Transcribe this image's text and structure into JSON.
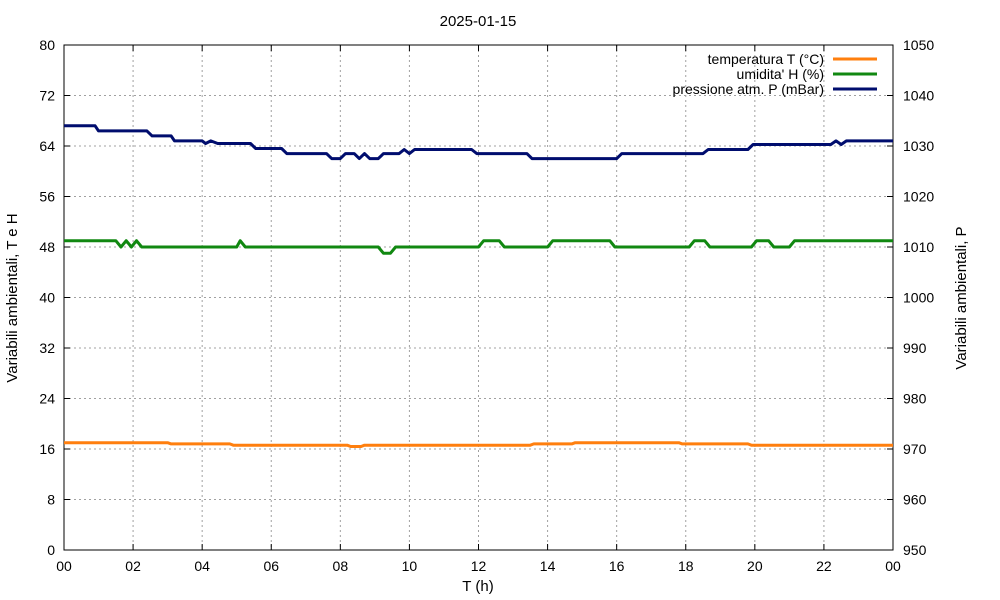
{
  "chart_data": {
    "type": "line",
    "title": "2025-01-15",
    "xlabel": "T (h)",
    "ylabel_left": "Variabili ambientali, T e H",
    "ylabel_right": "Variabili ambientali, P",
    "x_ticks": [
      "00",
      "02",
      "04",
      "06",
      "08",
      "10",
      "12",
      "14",
      "16",
      "18",
      "20",
      "22",
      "00"
    ],
    "xlim": [
      0,
      24
    ],
    "ylim_left": [
      0,
      80
    ],
    "y_ticks_left": [
      "0",
      "8",
      "16",
      "24",
      "32",
      "40",
      "48",
      "56",
      "64",
      "72",
      "80"
    ],
    "ylim_right": [
      950,
      1050
    ],
    "y_ticks_right": [
      "950",
      "960",
      "970",
      "980",
      "990",
      "1000",
      "1010",
      "1020",
      "1030",
      "1040",
      "1050"
    ],
    "grid": true,
    "legend_position": "top-right",
    "series": [
      {
        "name": "temperatura T (°C)",
        "axis": "left",
        "color": "#ff7f0e",
        "points": [
          [
            0,
            17.0
          ],
          [
            3.0,
            17.0
          ],
          [
            3.1,
            16.8
          ],
          [
            4.8,
            16.8
          ],
          [
            4.9,
            16.6
          ],
          [
            8.2,
            16.6
          ],
          [
            8.3,
            16.4
          ],
          [
            8.6,
            16.4
          ],
          [
            8.7,
            16.6
          ],
          [
            13.5,
            16.6
          ],
          [
            13.6,
            16.8
          ],
          [
            14.7,
            16.8
          ],
          [
            14.8,
            17.0
          ],
          [
            17.8,
            17.0
          ],
          [
            17.9,
            16.8
          ],
          [
            19.8,
            16.8
          ],
          [
            19.9,
            16.6
          ],
          [
            24.0,
            16.6
          ]
        ]
      },
      {
        "name": "umidita' H (%)",
        "axis": "left",
        "color": "#118811",
        "points": [
          [
            0,
            49
          ],
          [
            1.5,
            49
          ],
          [
            1.65,
            48
          ],
          [
            1.8,
            49
          ],
          [
            1.95,
            48
          ],
          [
            2.1,
            49
          ],
          [
            2.25,
            48
          ],
          [
            5.0,
            48
          ],
          [
            5.1,
            49
          ],
          [
            5.25,
            48
          ],
          [
            9.1,
            48
          ],
          [
            9.25,
            47
          ],
          [
            9.45,
            47
          ],
          [
            9.6,
            48
          ],
          [
            12.0,
            48
          ],
          [
            12.15,
            49
          ],
          [
            12.6,
            49
          ],
          [
            12.75,
            48
          ],
          [
            14.0,
            48
          ],
          [
            14.15,
            49
          ],
          [
            15.8,
            49
          ],
          [
            15.95,
            48
          ],
          [
            18.1,
            48
          ],
          [
            18.25,
            49
          ],
          [
            18.55,
            49
          ],
          [
            18.7,
            48
          ],
          [
            19.9,
            48
          ],
          [
            20.05,
            49
          ],
          [
            20.4,
            49
          ],
          [
            20.55,
            48
          ],
          [
            21.0,
            48
          ],
          [
            21.15,
            49
          ],
          [
            24.0,
            49
          ]
        ]
      },
      {
        "name": "pressione atm. P (mBar)",
        "axis": "right",
        "color": "#000d6e",
        "points": [
          [
            0,
            1034
          ],
          [
            0.9,
            1034
          ],
          [
            1.0,
            1033
          ],
          [
            2.4,
            1033
          ],
          [
            2.55,
            1032
          ],
          [
            3.1,
            1032
          ],
          [
            3.2,
            1031
          ],
          [
            4.0,
            1031
          ],
          [
            4.1,
            1030.5
          ],
          [
            4.25,
            1031
          ],
          [
            4.45,
            1030.5
          ],
          [
            5.4,
            1030.5
          ],
          [
            5.55,
            1029.5
          ],
          [
            6.3,
            1029.5
          ],
          [
            6.45,
            1028.5
          ],
          [
            7.6,
            1028.5
          ],
          [
            7.75,
            1027.5
          ],
          [
            8.0,
            1027.5
          ],
          [
            8.15,
            1028.5
          ],
          [
            8.4,
            1028.5
          ],
          [
            8.55,
            1027.5
          ],
          [
            8.7,
            1028.5
          ],
          [
            8.85,
            1027.5
          ],
          [
            9.1,
            1027.5
          ],
          [
            9.25,
            1028.5
          ],
          [
            9.7,
            1028.5
          ],
          [
            9.85,
            1029.3
          ],
          [
            10.0,
            1028.5
          ],
          [
            10.15,
            1029.3
          ],
          [
            11.8,
            1029.3
          ],
          [
            11.95,
            1028.5
          ],
          [
            13.4,
            1028.5
          ],
          [
            13.55,
            1027.5
          ],
          [
            16.0,
            1027.5
          ],
          [
            16.15,
            1028.5
          ],
          [
            18.5,
            1028.5
          ],
          [
            18.65,
            1029.3
          ],
          [
            19.8,
            1029.3
          ],
          [
            19.95,
            1030.3
          ],
          [
            22.2,
            1030.3
          ],
          [
            22.35,
            1031
          ],
          [
            22.5,
            1030.3
          ],
          [
            22.65,
            1031
          ],
          [
            24.0,
            1031
          ]
        ]
      }
    ]
  }
}
